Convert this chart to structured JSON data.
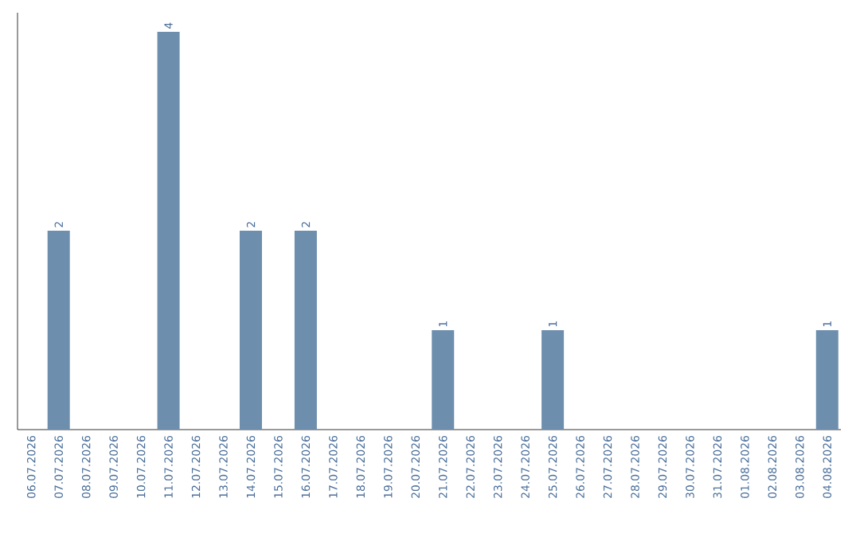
{
  "chart_data": {
    "type": "bar",
    "categories": [
      "06.07.2026",
      "07.07.2026",
      "08.07.2026",
      "09.07.2026",
      "10.07.2026",
      "11.07.2026",
      "12.07.2026",
      "13.07.2026",
      "14.07.2026",
      "15.07.2026",
      "16.07.2026",
      "17.07.2026",
      "18.07.2026",
      "19.07.2026",
      "20.07.2026",
      "21.07.2026",
      "22.07.2026",
      "23.07.2026",
      "24.07.2026",
      "25.07.2026",
      "26.07.2026",
      "27.07.2026",
      "28.07.2026",
      "29.07.2026",
      "30.07.2026",
      "31.07.2026",
      "01.08.2026",
      "02.08.2026",
      "03.08.2026",
      "04.08.2026"
    ],
    "values": [
      0,
      2,
      0,
      0,
      0,
      4,
      0,
      0,
      2,
      0,
      2,
      0,
      0,
      0,
      0,
      1,
      0,
      0,
      0,
      1,
      0,
      0,
      0,
      0,
      0,
      0,
      0,
      0,
      0,
      1
    ],
    "value_labels": [
      null,
      "2",
      null,
      null,
      null,
      "4",
      null,
      null,
      "2",
      null,
      "2",
      null,
      null,
      null,
      null,
      "1",
      null,
      null,
      null,
      "1",
      null,
      null,
      null,
      null,
      null,
      null,
      null,
      null,
      null,
      "1"
    ],
    "color": "#6d8fad"
  }
}
